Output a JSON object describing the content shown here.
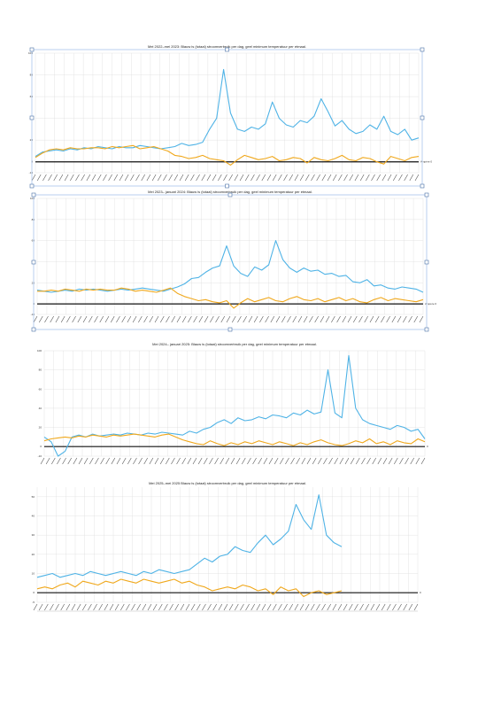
{
  "colors": {
    "blue": "#4fb3e6",
    "orange": "#f0a81c",
    "axis": "#111111",
    "grid": "#dddddd"
  },
  "chart_data": [
    {
      "type": "line",
      "title": "Mei 2022–mei 2023:  Blauw is (totaal) stroomverbruik per dag, geel minimum temperatuur per etmaal.",
      "ylim": [
        -10,
        100
      ],
      "yticks": [
        "-10",
        "0",
        "20",
        "40",
        "60",
        "80",
        "100"
      ],
      "zero_label": "Ampère 0",
      "grid": true,
      "selected": true,
      "series": [
        {
          "color": "blue",
          "values": [
            5,
            9,
            10,
            11,
            10,
            12,
            11,
            13,
            12,
            14,
            13,
            12,
            14,
            13,
            13,
            15,
            14,
            13,
            12,
            13,
            14,
            17,
            15,
            16,
            18,
            30,
            40,
            85,
            45,
            30,
            28,
            32,
            30,
            35,
            55,
            40,
            34,
            32,
            38,
            36,
            42,
            58,
            46,
            33,
            38,
            30,
            26,
            28,
            34,
            30,
            42,
            28,
            25,
            30,
            20,
            22
          ]
        },
        {
          "color": "orange",
          "values": [
            4,
            8,
            11,
            12,
            11,
            13,
            12,
            12,
            13,
            13,
            12,
            14,
            13,
            14,
            15,
            12,
            13,
            14,
            12,
            10,
            6,
            5,
            3,
            4,
            6,
            3,
            2,
            1,
            -3,
            2,
            6,
            4,
            2,
            3,
            5,
            1,
            2,
            4,
            3,
            -1,
            4,
            2,
            1,
            3,
            6,
            2,
            1,
            4,
            3,
            0,
            -2,
            5,
            3,
            1,
            4,
            5
          ]
        }
      ]
    },
    {
      "type": "line",
      "title": "Mei 2023– januari 2024:  Blauw is (totaal) stroomverbruik per dag, geel minimum temperatuur per etmaal.",
      "ylim": [
        -10,
        100
      ],
      "yticks": [
        "-10",
        "0",
        "20",
        "40",
        "60",
        "80",
        "100"
      ],
      "zero_label": "Ampère 0",
      "grid": true,
      "selected": true,
      "series": [
        {
          "color": "blue",
          "values": [
            13,
            12,
            11,
            12,
            13,
            12,
            14,
            13,
            14,
            13,
            12,
            13,
            14,
            13,
            14,
            15,
            14,
            13,
            12,
            14,
            16,
            19,
            24,
            25,
            30,
            34,
            36,
            55,
            36,
            29,
            26,
            35,
            32,
            37,
            60,
            42,
            34,
            30,
            34,
            31,
            32,
            28,
            29,
            26,
            27,
            21,
            20,
            23,
            17,
            18,
            15,
            14,
            16,
            15,
            14,
            11
          ]
        },
        {
          "color": "orange",
          "values": [
            12,
            12,
            13,
            12,
            14,
            13,
            12,
            14,
            13,
            14,
            13,
            13,
            15,
            14,
            12,
            13,
            12,
            11,
            13,
            15,
            10,
            7,
            5,
            3,
            4,
            2,
            1,
            3,
            -4,
            1,
            5,
            2,
            4,
            6,
            3,
            2,
            5,
            7,
            4,
            3,
            5,
            2,
            4,
            6,
            3,
            5,
            2,
            1,
            4,
            6,
            3,
            5,
            4,
            3,
            2,
            4
          ]
        }
      ]
    },
    {
      "type": "line",
      "title": "Mei 2024– januari 2025:  Blauw is (totaal) stroomverbruik per dag, geel minimum temperatuur per etmaal.",
      "ylim": [
        -10,
        100
      ],
      "yticks": [
        "-10",
        "0",
        "20",
        "40",
        "60",
        "80",
        "100"
      ],
      "zero_label": "0",
      "grid": true,
      "selected": false,
      "series": [
        {
          "color": "blue",
          "values": [
            10,
            5,
            -10,
            -5,
            10,
            12,
            10,
            13,
            11,
            12,
            13,
            12,
            14,
            13,
            12,
            14,
            13,
            15,
            14,
            13,
            12,
            16,
            14,
            18,
            20,
            25,
            28,
            24,
            30,
            27,
            28,
            31,
            29,
            33,
            32,
            30,
            35,
            33,
            38,
            34,
            36,
            80,
            35,
            30,
            95,
            40,
            28,
            24,
            22,
            20,
            18,
            22,
            20,
            16,
            18,
            8
          ]
        },
        {
          "color": "orange",
          "values": [
            6,
            8,
            9,
            10,
            9,
            11,
            10,
            12,
            11,
            10,
            12,
            11,
            12,
            13,
            12,
            11,
            10,
            12,
            13,
            10,
            7,
            5,
            3,
            2,
            6,
            3,
            1,
            4,
            2,
            5,
            3,
            6,
            4,
            2,
            5,
            3,
            1,
            4,
            2,
            5,
            7,
            4,
            2,
            1,
            3,
            6,
            4,
            8,
            3,
            5,
            2,
            6,
            4,
            3,
            8,
            5
          ]
        }
      ]
    },
    {
      "type": "line",
      "title": "Mei 2025–mei 2025  Blauw is (totaal) stroomverbruik per dag, geel minimum temperatuur per etmaal.",
      "ylim": [
        -5,
        55
      ],
      "yticks": [
        "-5",
        "0",
        "10",
        "20",
        "30",
        "40",
        "50"
      ],
      "zero_label": "0",
      "grid": true,
      "selected": false,
      "series": [
        {
          "color": "blue",
          "values": [
            8,
            9,
            10,
            8,
            9,
            10,
            9,
            11,
            10,
            9,
            10,
            11,
            10,
            9,
            11,
            10,
            12,
            11,
            10,
            11,
            12,
            15,
            18,
            16,
            19,
            20,
            24,
            22,
            21,
            26,
            30,
            25,
            28,
            32,
            46,
            38,
            33,
            51,
            30,
            26,
            24
          ]
        },
        {
          "color": "orange",
          "values": [
            2,
            3,
            2,
            4,
            5,
            3,
            6,
            5,
            4,
            6,
            5,
            7,
            6,
            5,
            7,
            6,
            5,
            6,
            7,
            5,
            6,
            4,
            3,
            1,
            2,
            3,
            2,
            4,
            3,
            1,
            2,
            -1,
            3,
            1,
            2,
            -2,
            0,
            1,
            -1,
            0,
            1
          ]
        }
      ]
    }
  ]
}
